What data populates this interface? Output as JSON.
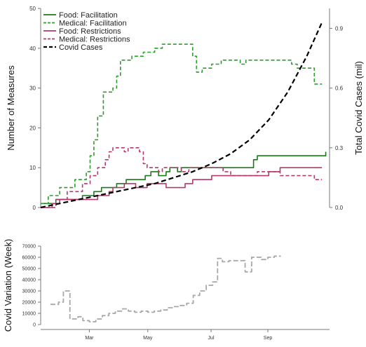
{
  "colors": {
    "food": "#1a7a1a",
    "medical": "#2e9b2e",
    "restrictions": "#b3386b",
    "covid": "#000000",
    "variation": "#a8a8a8",
    "axis": "#777777"
  },
  "chart_data": [
    {
      "type": "line",
      "title": "",
      "ylabel": "Number of Measures",
      "y2label": "Total Covid Cases (mil)",
      "ylim": [
        0,
        50
      ],
      "y2lim": [
        0.0,
        1.0
      ],
      "yticks": [
        "0",
        "10",
        "20",
        "30",
        "40",
        "50"
      ],
      "y2ticks": [
        "0.0",
        "0.3",
        "0.6",
        "0.9"
      ],
      "y2tick_values": [
        0.0,
        0.3,
        0.6,
        0.9
      ],
      "legend": {
        "placement": "top-left",
        "entries": [
          {
            "label": "Food: Facilitation",
            "series": "food_facilitation"
          },
          {
            "label": "Medical: Facilitation",
            "series": "medical_facilitation"
          },
          {
            "label": "Food: Restrictions",
            "series": "food_restrictions"
          },
          {
            "label": "Medical: Restrictions",
            "series": "medical_restrictions"
          },
          {
            "label": "Covid Cases",
            "series": "covid_cases"
          }
        ]
      },
      "series": [
        {
          "name": "Food: Facilitation",
          "id": "food_facilitation",
          "style": "solid",
          "axis": "left",
          "color": "#1a7a1a",
          "points": [
            [
              0,
              1
            ],
            [
              8,
              1
            ],
            [
              8,
              2
            ],
            [
              22,
              2
            ],
            [
              22,
              3
            ],
            [
              28,
              3
            ],
            [
              28,
              4
            ],
            [
              32,
              4
            ],
            [
              32,
              5
            ],
            [
              40,
              5
            ],
            [
              40,
              6
            ],
            [
              45,
              6
            ],
            [
              45,
              7
            ],
            [
              55,
              7
            ],
            [
              55,
              8
            ],
            [
              58,
              8
            ],
            [
              58,
              9
            ],
            [
              62,
              9
            ],
            [
              62,
              8
            ],
            [
              66,
              8
            ],
            [
              66,
              9
            ],
            [
              68,
              9
            ],
            [
              68,
              10
            ],
            [
              72,
              10
            ],
            [
              72,
              9
            ],
            [
              74,
              9
            ],
            [
              74,
              10
            ],
            [
              112,
              10
            ],
            [
              112,
              12
            ],
            [
              114,
              12
            ],
            [
              114,
              13
            ],
            [
              150,
              13
            ],
            [
              150,
              14
            ]
          ]
        },
        {
          "name": "Medical: Facilitation",
          "id": "medical_facilitation",
          "style": "dashed",
          "axis": "left",
          "color": "#2e9b2e",
          "points": [
            [
              0,
              1
            ],
            [
              4,
              1
            ],
            [
              4,
              3
            ],
            [
              10,
              3
            ],
            [
              10,
              5
            ],
            [
              18,
              5
            ],
            [
              18,
              7
            ],
            [
              24,
              7
            ],
            [
              24,
              9
            ],
            [
              26,
              9
            ],
            [
              26,
              13
            ],
            [
              28,
              13
            ],
            [
              28,
              17
            ],
            [
              30,
              17
            ],
            [
              30,
              23
            ],
            [
              33,
              23
            ],
            [
              33,
              29
            ],
            [
              38,
              29
            ],
            [
              38,
              30
            ],
            [
              40,
              30
            ],
            [
              40,
              33
            ],
            [
              42,
              33
            ],
            [
              42,
              37
            ],
            [
              48,
              37
            ],
            [
              48,
              38
            ],
            [
              54,
              38
            ],
            [
              54,
              39
            ],
            [
              60,
              39
            ],
            [
              60,
              40
            ],
            [
              64,
              40
            ],
            [
              64,
              41
            ],
            [
              80,
              41
            ],
            [
              80,
              38
            ],
            [
              82,
              38
            ],
            [
              82,
              34
            ],
            [
              85,
              34
            ],
            [
              85,
              35
            ],
            [
              90,
              35
            ],
            [
              90,
              36
            ],
            [
              95,
              36
            ],
            [
              95,
              37
            ],
            [
              105,
              37
            ],
            [
              105,
              36
            ],
            [
              108,
              36
            ],
            [
              108,
              37
            ],
            [
              132,
              37
            ],
            [
              132,
              36
            ],
            [
              135,
              36
            ],
            [
              135,
              35
            ],
            [
              144,
              35
            ],
            [
              144,
              31
            ],
            [
              148,
              31
            ]
          ]
        },
        {
          "name": "Food: Restrictions",
          "id": "food_restrictions",
          "style": "solid",
          "axis": "left",
          "color": "#b3386b",
          "points": [
            [
              0,
              0
            ],
            [
              6,
              0
            ],
            [
              6,
              1
            ],
            [
              10,
              1
            ],
            [
              10,
              2
            ],
            [
              30,
              2
            ],
            [
              30,
              3
            ],
            [
              36,
              3
            ],
            [
              36,
              4
            ],
            [
              38,
              4
            ],
            [
              38,
              5
            ],
            [
              44,
              5
            ],
            [
              44,
              6
            ],
            [
              50,
              6
            ],
            [
              50,
              5
            ],
            [
              56,
              5
            ],
            [
              56,
              6
            ],
            [
              66,
              6
            ],
            [
              66,
              5
            ],
            [
              76,
              5
            ],
            [
              76,
              6
            ],
            [
              80,
              6
            ],
            [
              80,
              7
            ],
            [
              90,
              7
            ],
            [
              90,
              8
            ],
            [
              120,
              8
            ],
            [
              120,
              9
            ],
            [
              126,
              9
            ],
            [
              126,
              10
            ],
            [
              148,
              10
            ]
          ]
        },
        {
          "name": "Medical: Restrictions",
          "id": "medical_restrictions",
          "style": "dashed",
          "axis": "left",
          "color": "#b3386b",
          "points": [
            [
              0,
              0
            ],
            [
              8,
              0
            ],
            [
              8,
              2
            ],
            [
              14,
              2
            ],
            [
              14,
              4
            ],
            [
              22,
              4
            ],
            [
              22,
              6
            ],
            [
              26,
              6
            ],
            [
              26,
              8
            ],
            [
              30,
              8
            ],
            [
              30,
              10
            ],
            [
              34,
              10
            ],
            [
              34,
              12
            ],
            [
              36,
              12
            ],
            [
              36,
              14
            ],
            [
              38,
              14
            ],
            [
              38,
              15
            ],
            [
              44,
              15
            ],
            [
              44,
              14
            ],
            [
              46,
              14
            ],
            [
              46,
              15
            ],
            [
              52,
              15
            ],
            [
              52,
              14
            ],
            [
              54,
              14
            ],
            [
              54,
              11
            ],
            [
              56,
              11
            ],
            [
              56,
              10
            ],
            [
              62,
              10
            ],
            [
              62,
              9
            ],
            [
              64,
              9
            ],
            [
              64,
              10
            ],
            [
              74,
              10
            ],
            [
              74,
              9
            ],
            [
              78,
              9
            ],
            [
              78,
              10
            ],
            [
              96,
              10
            ],
            [
              96,
              9
            ],
            [
              100,
              9
            ],
            [
              100,
              8
            ],
            [
              114,
              8
            ],
            [
              114,
              9
            ],
            [
              126,
              9
            ],
            [
              126,
              8
            ],
            [
              144,
              8
            ],
            [
              144,
              7
            ],
            [
              148,
              7
            ]
          ]
        },
        {
          "name": "Covid Cases",
          "id": "covid_cases",
          "style": "dashed",
          "axis": "right",
          "color": "#000000",
          "points": [
            [
              0,
              0.0
            ],
            [
              10,
              0.02
            ],
            [
              20,
              0.04
            ],
            [
              30,
              0.06
            ],
            [
              40,
              0.08
            ],
            [
              50,
              0.1
            ],
            [
              60,
              0.12
            ],
            [
              70,
              0.15
            ],
            [
              80,
              0.18
            ],
            [
              90,
              0.22
            ],
            [
              100,
              0.27
            ],
            [
              110,
              0.34
            ],
            [
              120,
              0.44
            ],
            [
              130,
              0.58
            ],
            [
              140,
              0.76
            ],
            [
              148,
              0.93
            ]
          ]
        }
      ]
    },
    {
      "type": "line",
      "title": "",
      "ylabel": "Covid Variation (Week)",
      "xlabel": "",
      "ylim": [
        0,
        70000
      ],
      "yticks": [
        "0",
        "10000",
        "20000",
        "30000",
        "40000",
        "50000",
        "60000",
        "70000"
      ],
      "ytick_values": [
        0,
        10000,
        20000,
        30000,
        40000,
        50000,
        60000,
        70000
      ],
      "xticks": [
        "Mar",
        "May",
        "Jul",
        "Sep"
      ],
      "xtick_values": [
        12,
        48,
        87,
        122
      ],
      "xlim": [
        -18,
        160
      ],
      "series": [
        {
          "name": "",
          "id": "covid_variation",
          "style": "dashed",
          "color": "#a8a8a8",
          "points": [
            [
              -12,
              18000
            ],
            [
              -7,
              18000
            ],
            [
              -7,
              20000
            ],
            [
              -4,
              20000
            ],
            [
              -4,
              30000
            ],
            [
              0,
              30000
            ],
            [
              0,
              5000
            ],
            [
              5,
              5000
            ],
            [
              5,
              7000
            ],
            [
              8,
              7000
            ],
            [
              8,
              3500
            ],
            [
              12,
              3500
            ],
            [
              12,
              2500
            ],
            [
              16,
              2500
            ],
            [
              16,
              5000
            ],
            [
              20,
              5000
            ],
            [
              20,
              8000
            ],
            [
              24,
              8000
            ],
            [
              24,
              10000
            ],
            [
              28,
              10000
            ],
            [
              28,
              12000
            ],
            [
              32,
              12000
            ],
            [
              32,
              14000
            ],
            [
              36,
              14000
            ],
            [
              36,
              12000
            ],
            [
              40,
              12000
            ],
            [
              40,
              11000
            ],
            [
              44,
              11000
            ],
            [
              44,
              12000
            ],
            [
              48,
              12000
            ],
            [
              48,
              11000
            ],
            [
              52,
              11000
            ],
            [
              52,
              12000
            ],
            [
              56,
              12000
            ],
            [
              56,
              13000
            ],
            [
              60,
              13000
            ],
            [
              60,
              15000
            ],
            [
              64,
              15000
            ],
            [
              64,
              16000
            ],
            [
              68,
              16000
            ],
            [
              68,
              17000
            ],
            [
              72,
              17000
            ],
            [
              72,
              19000
            ],
            [
              76,
              19000
            ],
            [
              76,
              26000
            ],
            [
              80,
              26000
            ],
            [
              80,
              30000
            ],
            [
              84,
              30000
            ],
            [
              84,
              35000
            ],
            [
              88,
              35000
            ],
            [
              88,
              38000
            ],
            [
              91,
              38000
            ],
            [
              91,
              59000
            ],
            [
              94,
              59000
            ],
            [
              94,
              56000
            ],
            [
              98,
              56000
            ],
            [
              98,
              57000
            ],
            [
              104,
              57000
            ],
            [
              104,
              57000
            ],
            [
              108,
              57000
            ],
            [
              108,
              47000
            ],
            [
              112,
              47000
            ],
            [
              112,
              60000
            ],
            [
              118,
              60000
            ],
            [
              118,
              58000
            ],
            [
              122,
              58000
            ],
            [
              122,
              60000
            ],
            [
              126,
              60000
            ],
            [
              126,
              61000
            ],
            [
              130,
              61000
            ]
          ]
        }
      ]
    }
  ]
}
